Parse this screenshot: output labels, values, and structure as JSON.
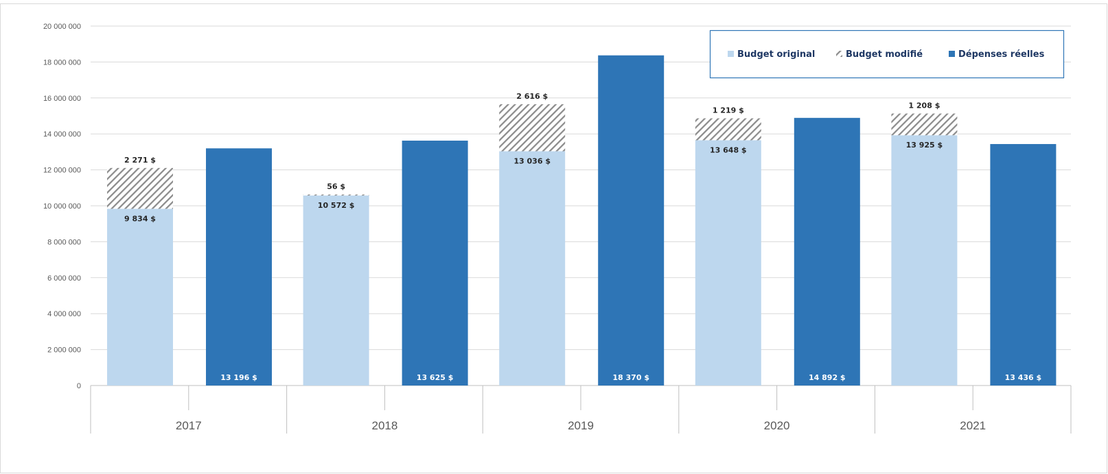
{
  "chart_data": {
    "type": "bar",
    "title": "",
    "xlabel": "",
    "ylabel": "",
    "ylim": [
      0,
      20000000
    ],
    "yticks": [
      0,
      2000000,
      4000000,
      6000000,
      8000000,
      10000000,
      12000000,
      14000000,
      16000000,
      18000000,
      20000000
    ],
    "ytick_labels": [
      "0",
      "2 000 000",
      "4 000 000",
      "6 000 000",
      "8 000 000",
      "10 000 000",
      "12 000 000",
      "14 000 000",
      "16 000 000",
      "18 000 000",
      "20 000 000"
    ],
    "categories": [
      "2017",
      "2018",
      "2019",
      "2020",
      "2021"
    ],
    "grid": true,
    "legend_position": "top-right",
    "stacked_budget": true,
    "series": [
      {
        "name": "Budget original",
        "color": "#bdd7ee",
        "values": [
          9834000,
          10572000,
          13036000,
          13648000,
          13925000
        ],
        "labels": [
          "9 834 $",
          "10 572 $",
          "13 036 $",
          "13 648 $",
          "13 925 $"
        ]
      },
      {
        "name": "Budget modifié",
        "color": "#8c8c8c",
        "pattern": "hatched",
        "values": [
          2271000,
          56000,
          2616000,
          1219000,
          1208000
        ],
        "labels": [
          "2 271 $",
          "56 $",
          "2 616 $",
          "1 219 $",
          "1 208 $"
        ]
      },
      {
        "name": "Dépenses réelles",
        "color": "#2e75b6",
        "values": [
          13196000,
          13625000,
          18370000,
          14892000,
          13436000
        ],
        "labels": [
          "13 196 $",
          "13 625 $",
          "18 370 $",
          "14 892 $",
          "13 436 $"
        ]
      }
    ]
  }
}
